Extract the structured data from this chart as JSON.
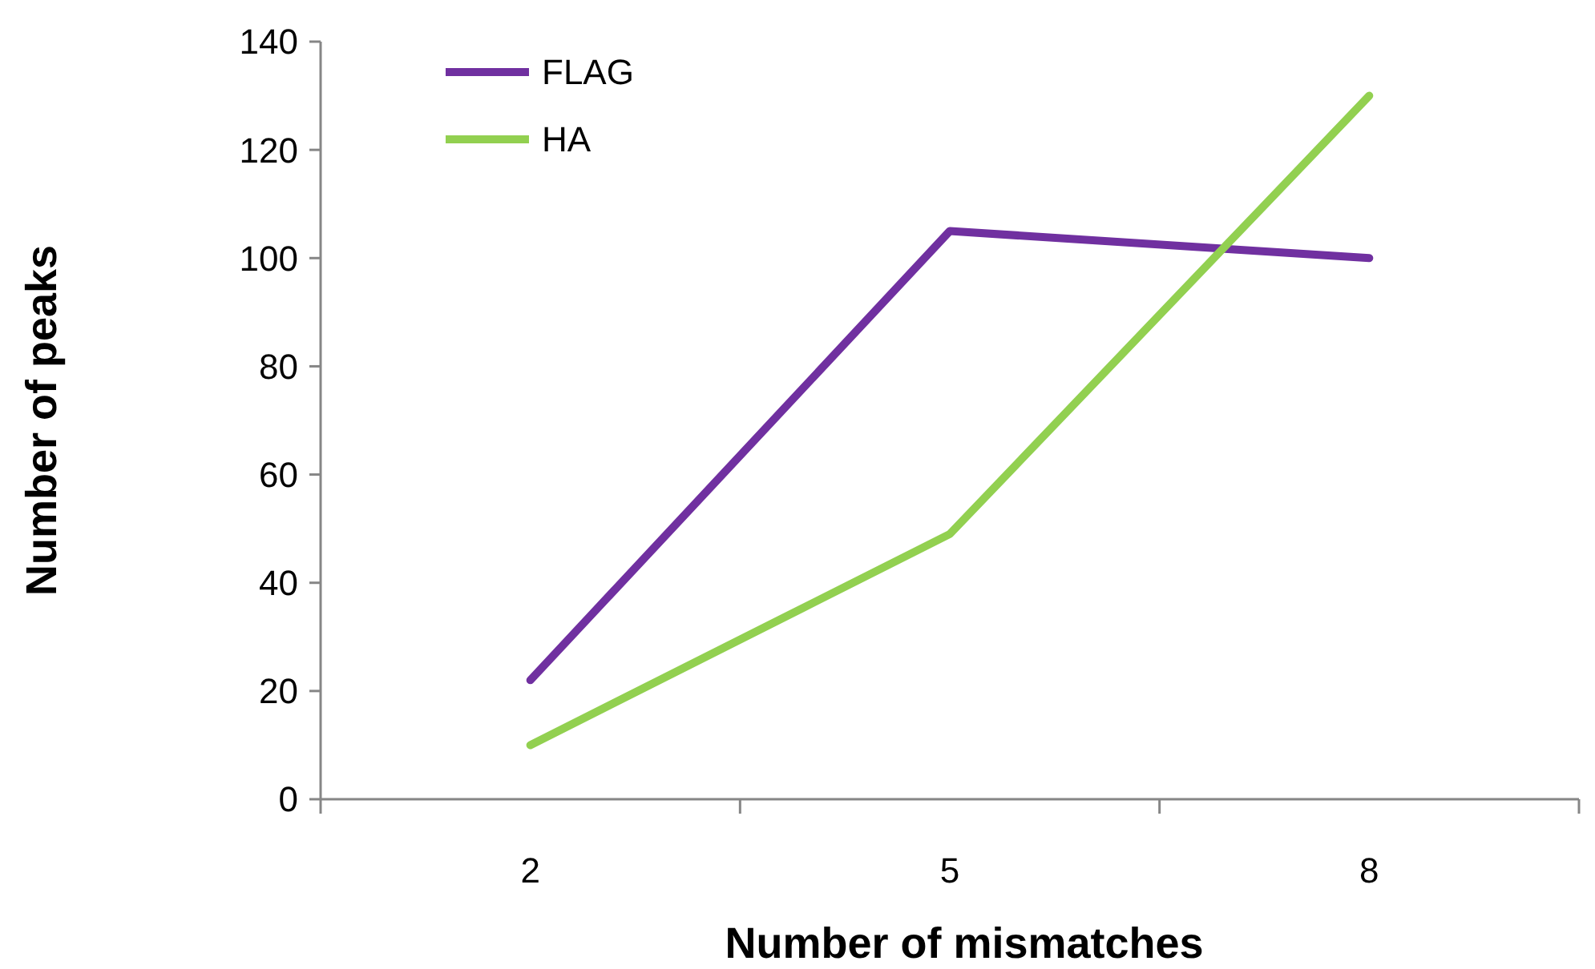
{
  "chart_data": {
    "type": "line",
    "xlabel": "Number of mismatches",
    "ylabel": "Number of peaks",
    "categories": [
      "2",
      "5",
      "8"
    ],
    "series": [
      {
        "name": "FLAG",
        "color": "#7030a0",
        "values": [
          22,
          105,
          100
        ]
      },
      {
        "name": "HA",
        "color": "#92d050",
        "values": [
          10,
          49,
          130
        ]
      }
    ],
    "ylim": [
      0,
      140
    ],
    "yticks": [
      0,
      20,
      40,
      60,
      80,
      100,
      120,
      140
    ],
    "grid": false,
    "legend": "top left",
    "marker": "none",
    "line_style": "solid"
  }
}
